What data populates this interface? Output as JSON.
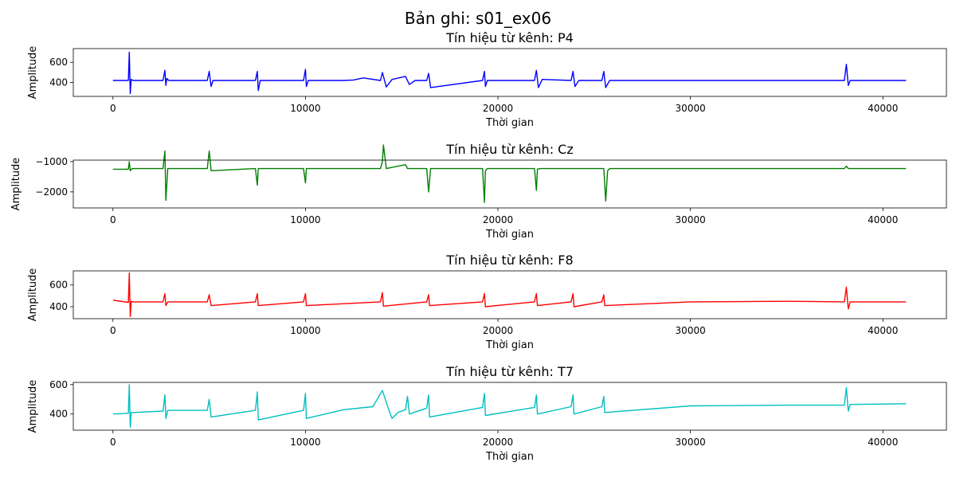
{
  "figure": {
    "title": "Bản ghi: s01_ex06"
  },
  "chart_data": [
    {
      "type": "line",
      "channel": "P4",
      "title": "Tín hiệu từ kênh: P4",
      "xlabel": "Thời gian",
      "ylabel": "Amplitude",
      "color": "#0000ff",
      "xlim": [
        -2060,
        43300
      ],
      "ylim": [
        262,
        736
      ],
      "xticks": [
        0,
        10000,
        20000,
        30000,
        40000
      ],
      "xtick_labels": [
        "0",
        "10000",
        "20000",
        "30000",
        "40000"
      ],
      "yticks": [
        400,
        600
      ],
      "ytick_labels": [
        "400",
        "600"
      ],
      "x": [
        0,
        800,
        850,
        900,
        950,
        1050,
        2600,
        2700,
        2750,
        2800,
        2900,
        4900,
        5000,
        5100,
        5200,
        7400,
        7500,
        7550,
        7650,
        9900,
        10000,
        10050,
        10150,
        12000,
        12500,
        13000,
        13900,
        14000,
        14200,
        14500,
        15200,
        15400,
        15700,
        16300,
        16400,
        16500,
        19200,
        19300,
        19350,
        19450,
        21900,
        22000,
        22100,
        22300,
        23800,
        23900,
        24000,
        24200,
        25400,
        25500,
        25600,
        25800,
        30000,
        35000,
        38000,
        38100,
        38200,
        38300,
        41200
      ],
      "y": [
        420,
        420,
        700,
        290,
        430,
        420,
        420,
        520,
        370,
        440,
        420,
        420,
        510,
        360,
        420,
        420,
        510,
        320,
        420,
        420,
        530,
        360,
        420,
        420,
        425,
        445,
        420,
        500,
        355,
        430,
        460,
        380,
        420,
        420,
        490,
        350,
        420,
        510,
        360,
        420,
        420,
        520,
        350,
        430,
        420,
        510,
        360,
        420,
        420,
        510,
        350,
        420,
        420,
        420,
        420,
        580,
        370,
        420,
        420
      ]
    },
    {
      "type": "line",
      "channel": "Cz",
      "title": "Tín hiệu từ kênh: Cz",
      "xlabel": "Thời gian",
      "ylabel": "Amplitude",
      "color": "#008000",
      "xlim": [
        -2060,
        43300
      ],
      "ylim": [
        -2530,
        -950
      ],
      "xticks": [
        0,
        10000,
        20000,
        30000,
        40000
      ],
      "xtick_labels": [
        "0",
        "10000",
        "20000",
        "30000",
        "40000"
      ],
      "yticks": [
        -2000,
        -1000
      ],
      "ytick_labels": [
        "−2000",
        "−1000"
      ],
      "x": [
        0,
        800,
        850,
        900,
        1000,
        2600,
        2700,
        2750,
        2850,
        4900,
        5000,
        5100,
        7400,
        7500,
        7550,
        9900,
        10000,
        10050,
        13900,
        14000,
        14050,
        14200,
        15200,
        15300,
        16300,
        16400,
        16500,
        19200,
        19300,
        19350,
        19450,
        21900,
        22000,
        22050,
        22200,
        25500,
        25600,
        25700,
        25800,
        30000,
        35000,
        38000,
        38100,
        38200,
        41200
      ],
      "y": [
        -1250,
        -1250,
        -1000,
        -1300,
        -1230,
        -1230,
        -650,
        -2280,
        -1230,
        -1230,
        -650,
        -1300,
        -1230,
        -1780,
        -1230,
        -1230,
        -1700,
        -1230,
        -1230,
        -1000,
        -450,
        -1230,
        -1100,
        -1230,
        -1230,
        -2000,
        -1230,
        -1230,
        -2350,
        -1300,
        -1230,
        -1230,
        -1950,
        -1250,
        -1230,
        -1230,
        -2300,
        -1300,
        -1230,
        -1230,
        -1230,
        -1230,
        -1150,
        -1230,
        -1230
      ]
    },
    {
      "type": "line",
      "channel": "F8",
      "title": "Tín hiệu từ kênh: F8",
      "xlabel": "Thời gian",
      "ylabel": "Amplitude",
      "color": "#ff0000",
      "xlim": [
        -2060,
        43300
      ],
      "ylim": [
        290,
        730
      ],
      "xticks": [
        0,
        10000,
        20000,
        30000,
        40000
      ],
      "xtick_labels": [
        "0",
        "10000",
        "20000",
        "30000",
        "40000"
      ],
      "yticks": [
        400,
        600
      ],
      "ytick_labels": [
        "400",
        "600"
      ],
      "x": [
        0,
        800,
        850,
        900,
        950,
        1050,
        2600,
        2700,
        2750,
        2850,
        4900,
        5000,
        5100,
        7400,
        7500,
        7550,
        9900,
        10000,
        10050,
        13900,
        14000,
        14050,
        16300,
        16400,
        16450,
        19200,
        19300,
        19350,
        21900,
        22000,
        22050,
        23800,
        23900,
        23950,
        25400,
        25500,
        25550,
        30000,
        35000,
        38000,
        38100,
        38200,
        38300,
        41200
      ],
      "y": [
        460,
        440,
        710,
        310,
        450,
        445,
        445,
        520,
        410,
        445,
        445,
        510,
        410,
        445,
        520,
        410,
        445,
        520,
        410,
        445,
        530,
        405,
        445,
        510,
        410,
        445,
        520,
        400,
        445,
        520,
        410,
        445,
        520,
        400,
        445,
        510,
        410,
        445,
        450,
        445,
        580,
        380,
        445,
        445
      ]
    },
    {
      "type": "line",
      "channel": "T7",
      "title": "Tín hiệu từ kênh: T7",
      "xlabel": "Thời gian",
      "ylabel": "Amplitude",
      "color": "#00bfbf",
      "xlim": [
        -2060,
        43300
      ],
      "ylim": [
        290,
        615
      ],
      "xticks": [
        0,
        10000,
        20000,
        30000,
        40000
      ],
      "xtick_labels": [
        "0",
        "10000",
        "20000",
        "30000",
        "40000"
      ],
      "yticks": [
        400,
        600
      ],
      "ytick_labels": [
        "400",
        "600"
      ],
      "x": [
        0,
        800,
        850,
        900,
        950,
        1050,
        2600,
        2700,
        2750,
        2850,
        4900,
        5000,
        5100,
        7400,
        7500,
        7550,
        9900,
        10000,
        10050,
        12000,
        13500,
        14000,
        14300,
        14500,
        14800,
        15200,
        15300,
        15400,
        16300,
        16400,
        16450,
        19200,
        19300,
        19350,
        21900,
        22000,
        22050,
        23800,
        23900,
        23950,
        25400,
        25500,
        25550,
        30000,
        35000,
        38000,
        38100,
        38200,
        38300,
        41200
      ],
      "y": [
        400,
        405,
        600,
        310,
        410,
        410,
        420,
        530,
        370,
        425,
        425,
        500,
        380,
        425,
        550,
        360,
        425,
        540,
        370,
        430,
        450,
        560,
        440,
        370,
        410,
        430,
        520,
        400,
        440,
        530,
        380,
        445,
        540,
        390,
        445,
        530,
        400,
        450,
        530,
        400,
        450,
        520,
        410,
        455,
        460,
        460,
        580,
        420,
        465,
        470
      ]
    }
  ]
}
